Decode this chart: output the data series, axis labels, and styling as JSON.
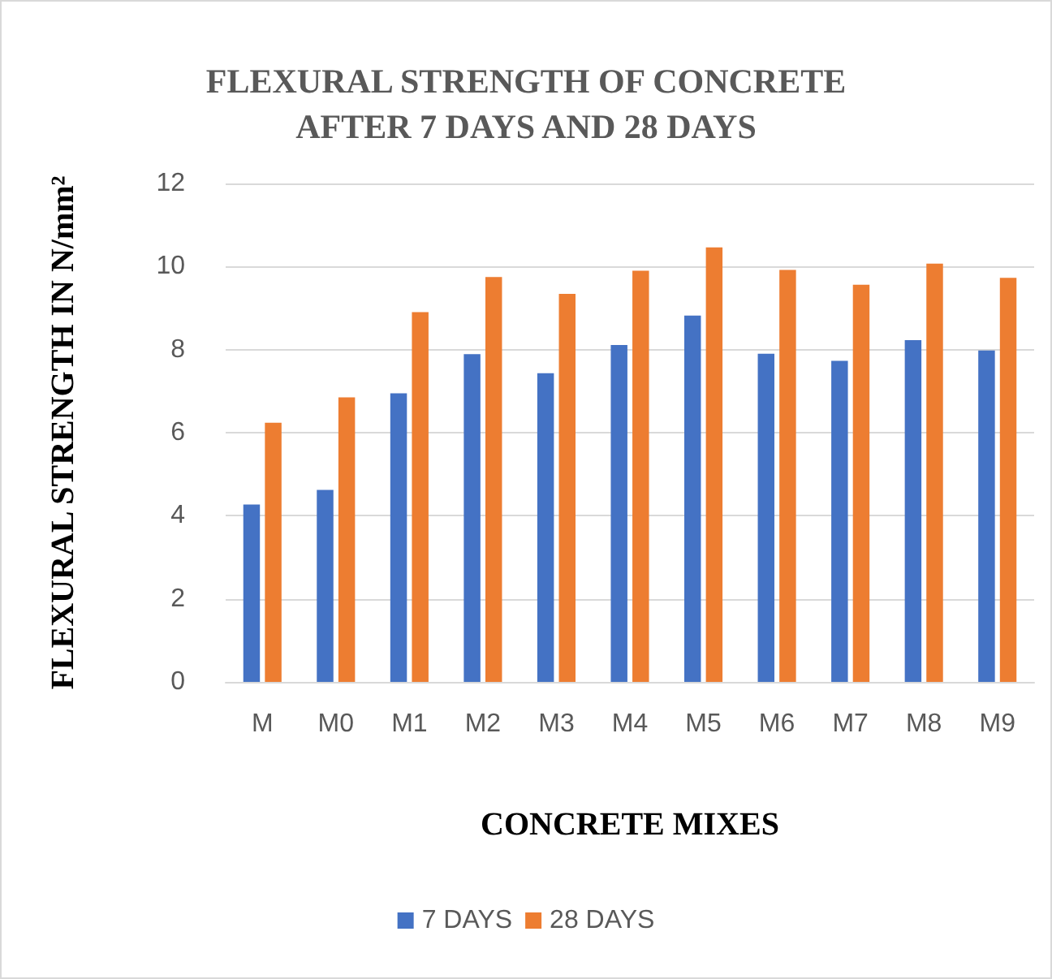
{
  "chart_data": {
    "type": "bar",
    "title": "FLEXURAL STRENGTH OF CONCRETE\nAFTER 7 DAYS AND 28 DAYS",
    "xlabel": "CONCRETE MIXES",
    "ylabel": "FLEXURAL STRENGTH IN N/mm²",
    "categories": [
      "M",
      "M0",
      "M1",
      "M2",
      "M3",
      "M4",
      "M5",
      "M6",
      "M7",
      "M8",
      "M9"
    ],
    "series": [
      {
        "name": "7 DAYS",
        "color": "#4472c4",
        "values": [
          4.27,
          4.62,
          6.95,
          7.89,
          7.43,
          8.11,
          8.82,
          7.9,
          7.73,
          8.23,
          7.98
        ]
      },
      {
        "name": "28 DAYS",
        "color": "#ed7d31",
        "values": [
          6.24,
          6.85,
          8.9,
          9.75,
          9.34,
          9.9,
          10.46,
          9.92,
          9.56,
          10.07,
          9.73
        ]
      }
    ],
    "ylim": [
      0,
      12
    ],
    "yticks": [
      0,
      2,
      4,
      6,
      8,
      10,
      12
    ],
    "grid": "y",
    "legend": "bottom"
  }
}
